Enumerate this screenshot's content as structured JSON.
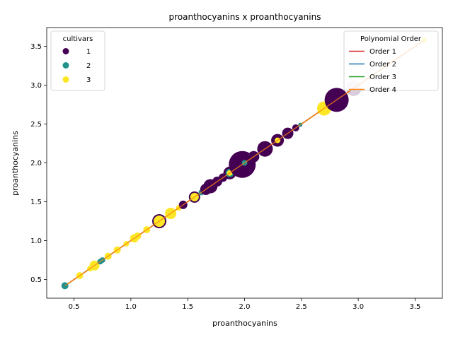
{
  "chart_data": {
    "type": "scatter",
    "title": "proanthocyanins x proanthocyanins",
    "xlabel": "proanthocyanins",
    "ylabel": "proanthocyanins",
    "xlim": [
      0.26,
      3.74
    ],
    "ylim": [
      0.26,
      3.74
    ],
    "xticks": [
      "0.5",
      "1.0",
      "1.5",
      "2.0",
      "2.5",
      "3.0",
      "3.5"
    ],
    "yticks": [
      "0.5",
      "1.0",
      "1.5",
      "2.0",
      "2.5",
      "3.0",
      "3.5"
    ],
    "xtick_values": [
      0.5,
      1.0,
      1.5,
      2.0,
      2.5,
      3.0,
      3.5
    ],
    "ytick_values": [
      0.5,
      1.0,
      1.5,
      2.0,
      2.5,
      3.0,
      3.5
    ],
    "grid": false,
    "color_legend": {
      "title": "cultivars",
      "placement": "top-left",
      "entries": [
        {
          "label": "1",
          "color": "#440154"
        },
        {
          "label": "2",
          "color": "#21918c"
        },
        {
          "label": "3",
          "color": "#fde725"
        }
      ]
    },
    "fit_legend": {
      "title": "Polynomial Order",
      "placement": "top-right",
      "entries": [
        {
          "label": "Order 1",
          "color": "#d62728"
        },
        {
          "label": "Order 2",
          "color": "#1f77b4"
        },
        {
          "label": "Order 3",
          "color": "#2ca02c"
        },
        {
          "label": "Order 4",
          "color": "#ff7f0e"
        }
      ]
    },
    "fit_line": {
      "x": [
        0.42,
        3.58
      ],
      "y": [
        0.42,
        3.58
      ]
    },
    "points": [
      {
        "x": 0.42,
        "y": 0.42,
        "cultivar": "2",
        "size": 5
      },
      {
        "x": 0.55,
        "y": 0.55,
        "cultivar": "3",
        "size": 5
      },
      {
        "x": 0.64,
        "y": 0.64,
        "cultivar": "3",
        "size": 4
      },
      {
        "x": 0.68,
        "y": 0.68,
        "cultivar": "3",
        "size": 7
      },
      {
        "x": 0.73,
        "y": 0.73,
        "cultivar": "2",
        "size": 4
      },
      {
        "x": 0.75,
        "y": 0.75,
        "cultivar": "2",
        "size": 4
      },
      {
        "x": 0.8,
        "y": 0.8,
        "cultivar": "3",
        "size": 5
      },
      {
        "x": 0.88,
        "y": 0.88,
        "cultivar": "3",
        "size": 5
      },
      {
        "x": 0.96,
        "y": 0.96,
        "cultivar": "3",
        "size": 4
      },
      {
        "x": 1.03,
        "y": 1.03,
        "cultivar": "3",
        "size": 6
      },
      {
        "x": 1.06,
        "y": 1.06,
        "cultivar": "3",
        "size": 5
      },
      {
        "x": 1.14,
        "y": 1.14,
        "cultivar": "3",
        "size": 5
      },
      {
        "x": 1.25,
        "y": 1.25,
        "cultivar": "1",
        "size": 10
      },
      {
        "x": 1.25,
        "y": 1.25,
        "cultivar": "3",
        "size": 8
      },
      {
        "x": 1.35,
        "y": 1.35,
        "cultivar": "3",
        "size": 8
      },
      {
        "x": 1.42,
        "y": 1.42,
        "cultivar": "3",
        "size": 4
      },
      {
        "x": 1.46,
        "y": 1.46,
        "cultivar": "1",
        "size": 6
      },
      {
        "x": 1.56,
        "y": 1.56,
        "cultivar": "1",
        "size": 8
      },
      {
        "x": 1.56,
        "y": 1.56,
        "cultivar": "3",
        "size": 6
      },
      {
        "x": 1.62,
        "y": 1.62,
        "cultivar": "2",
        "size": 4
      },
      {
        "x": 1.66,
        "y": 1.66,
        "cultivar": "1",
        "size": 8
      },
      {
        "x": 1.7,
        "y": 1.7,
        "cultivar": "1",
        "size": 10
      },
      {
        "x": 1.76,
        "y": 1.76,
        "cultivar": "1",
        "size": 7
      },
      {
        "x": 1.81,
        "y": 1.81,
        "cultivar": "1",
        "size": 6
      },
      {
        "x": 1.87,
        "y": 1.87,
        "cultivar": "1",
        "size": 9
      },
      {
        "x": 1.87,
        "y": 1.87,
        "cultivar": "2",
        "size": 6
      },
      {
        "x": 1.87,
        "y": 1.87,
        "cultivar": "3",
        "size": 4
      },
      {
        "x": 1.96,
        "y": 1.96,
        "cultivar": "2",
        "size": 4
      },
      {
        "x": 1.98,
        "y": 1.98,
        "cultivar": "1",
        "size": 19
      },
      {
        "x": 2.0,
        "y": 2.0,
        "cultivar": "2",
        "size": 4
      },
      {
        "x": 2.08,
        "y": 2.08,
        "cultivar": "1",
        "size": 8
      },
      {
        "x": 2.18,
        "y": 2.18,
        "cultivar": "1",
        "size": 11
      },
      {
        "x": 2.29,
        "y": 2.29,
        "cultivar": "1",
        "size": 9
      },
      {
        "x": 2.29,
        "y": 2.29,
        "cultivar": "3",
        "size": 4
      },
      {
        "x": 2.38,
        "y": 2.38,
        "cultivar": "1",
        "size": 8
      },
      {
        "x": 2.45,
        "y": 2.45,
        "cultivar": "1",
        "size": 5
      },
      {
        "x": 2.49,
        "y": 2.49,
        "cultivar": "2",
        "size": 3
      },
      {
        "x": 2.7,
        "y": 2.7,
        "cultivar": "3",
        "size": 10
      },
      {
        "x": 2.81,
        "y": 2.81,
        "cultivar": "1",
        "size": 17
      },
      {
        "x": 2.96,
        "y": 2.96,
        "cultivar": "1",
        "size": 11,
        "alpha": 0.2
      },
      {
        "x": 3.58,
        "y": 3.58,
        "cultivar": "3",
        "size": 4
      }
    ]
  }
}
